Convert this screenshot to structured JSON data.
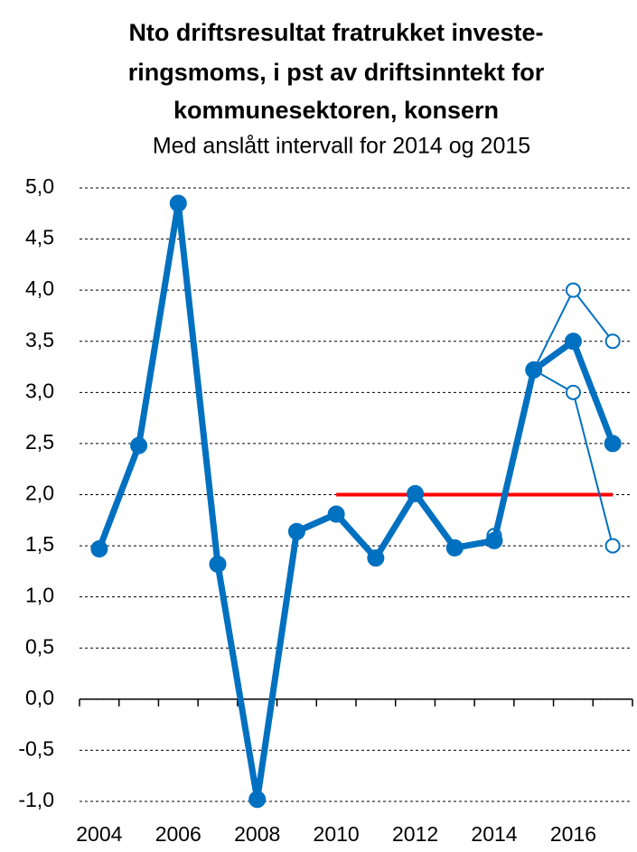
{
  "chart_data": {
    "type": "line",
    "title": [
      "Nto driftsresultat fratrukket investe-",
      "ringsmoms, i pst av driftsinntekt for",
      "kommunesektoren, konsern"
    ],
    "subtitle": "Med anslått intervall for 2014 og 2015",
    "xlim": [
      2003.5,
      2017.5
    ],
    "xticks": [
      2004,
      2006,
      2008,
      2010,
      2012,
      2014,
      2016
    ],
    "ylim": [
      -1,
      5
    ],
    "yticks": [
      {
        "value": -1,
        "label": "-1,0"
      },
      {
        "value": -0.5,
        "label": "-0,5"
      },
      {
        "value": 0,
        "label": "0,0"
      },
      {
        "value": 0.5,
        "label": "0,5"
      },
      {
        "value": 1,
        "label": "1,0"
      },
      {
        "value": 1.5,
        "label": "1,5"
      },
      {
        "value": 2,
        "label": "2,0"
      },
      {
        "value": 2.5,
        "label": "2,5"
      },
      {
        "value": 3,
        "label": "3,0"
      },
      {
        "value": 3.5,
        "label": "3,5"
      },
      {
        "value": 4,
        "label": "4,0"
      },
      {
        "value": 4.5,
        "label": "4,5"
      },
      {
        "value": 5,
        "label": "5,0"
      }
    ],
    "grid": true,
    "series": [
      {
        "color": "#ff0000",
        "marker": "none",
        "width": 4,
        "x": [
          2010,
          2017
        ],
        "values": [
          2.0,
          2.0
        ]
      },
      {
        "color": "#0070c0",
        "marker": "open",
        "width": 2,
        "x": [
          2014,
          2015,
          2016,
          2017
        ],
        "values": [
          1.6,
          3.22,
          4.0,
          3.5
        ]
      },
      {
        "color": "#0070c0",
        "marker": "open",
        "width": 2,
        "x": [
          2014,
          2015,
          2016,
          2017
        ],
        "values": [
          1.6,
          3.22,
          3.0,
          1.5
        ]
      },
      {
        "color": "#0070c0",
        "marker": "filled",
        "width": 7,
        "x": [
          2004,
          2005,
          2006,
          2007,
          2008,
          2009,
          2010,
          2011,
          2012,
          2013,
          2014,
          2015,
          2016,
          2017
        ],
        "values": [
          1.47,
          2.48,
          4.85,
          1.32,
          -0.98,
          1.64,
          1.81,
          1.38,
          2.01,
          1.48,
          1.55,
          3.22,
          3.5,
          2.5
        ]
      }
    ]
  }
}
